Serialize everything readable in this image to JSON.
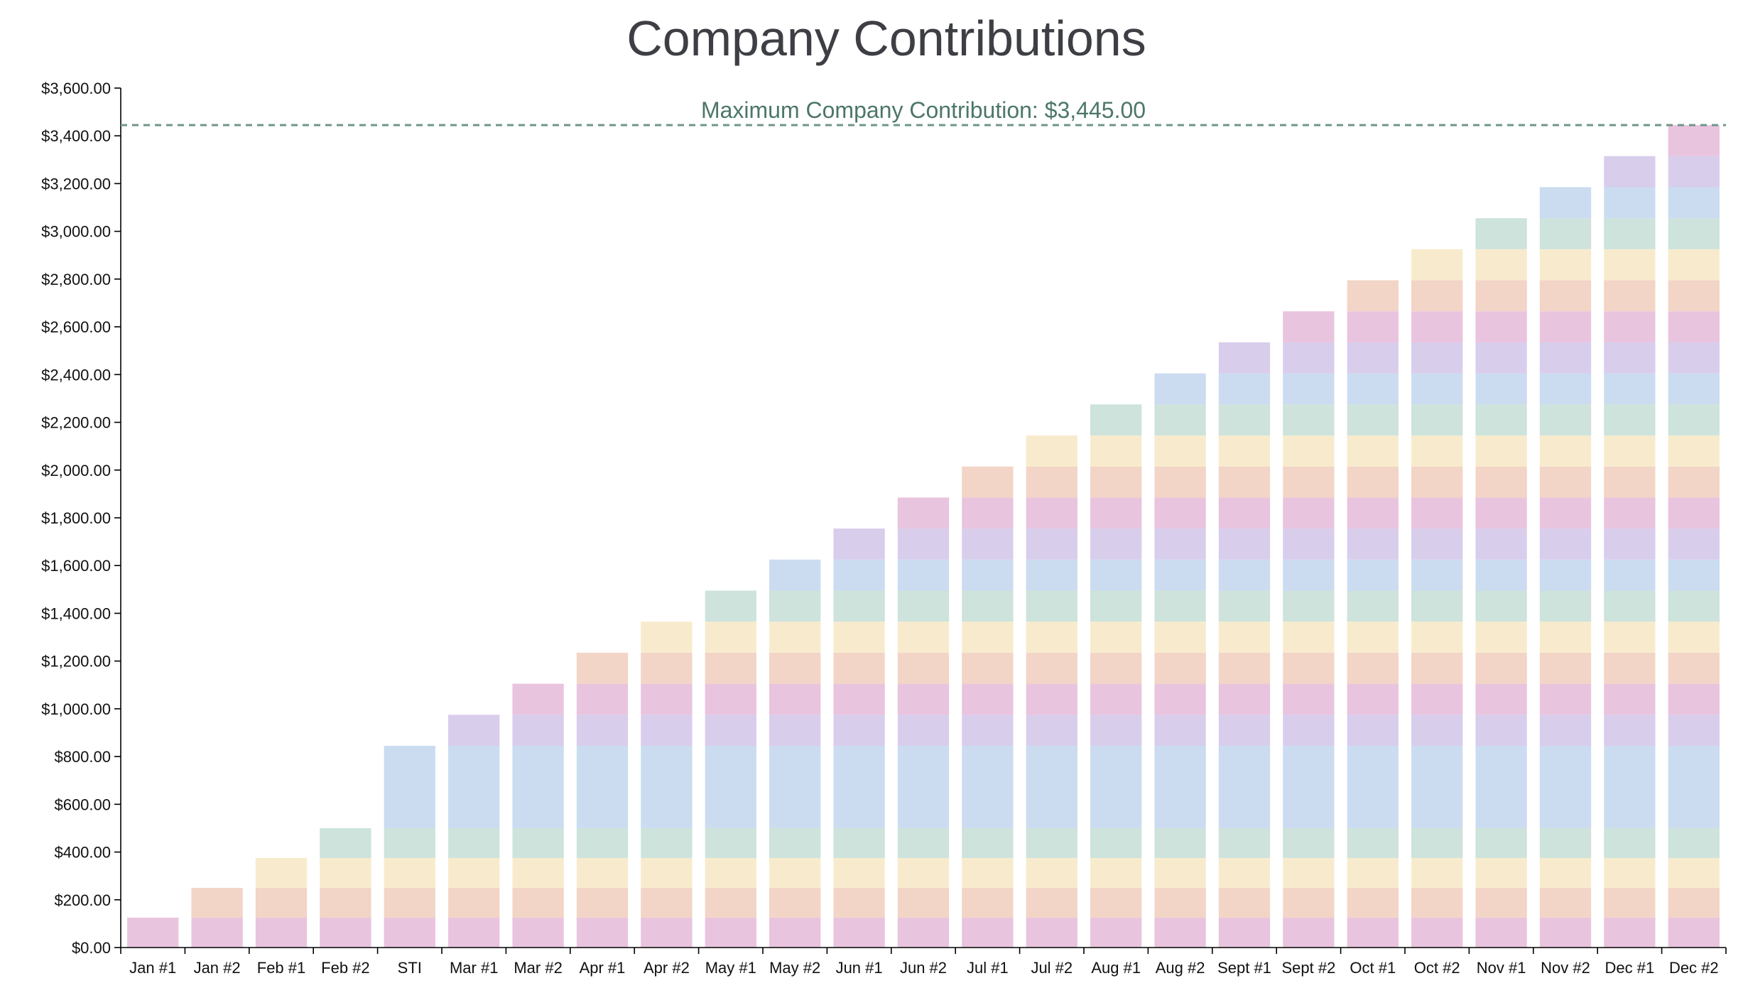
{
  "chart_data": {
    "type": "bar",
    "stacked": true,
    "title": "Company Contributions",
    "xlabel": "",
    "ylabel": "",
    "ylim": [
      0,
      3600
    ],
    "y_ticks": [
      "$0.00",
      "$200.00",
      "$400.00",
      "$600.00",
      "$800.00",
      "$1,000.00",
      "$1,200.00",
      "$1,400.00",
      "$1,600.00",
      "$1,800.00",
      "$2,000.00",
      "$2,200.00",
      "$2,400.00",
      "$2,600.00",
      "$2,800.00",
      "$3,000.00",
      "$3,200.00",
      "$3,400.00",
      "$3,600.00"
    ],
    "categories": [
      "Jan #1",
      "Jan #2",
      "Feb #1",
      "Feb #2",
      "STI",
      "Mar #1",
      "Mar #2",
      "Apr #1",
      "Apr #2",
      "May #1",
      "May #2",
      "Jun #1",
      "Jun #2",
      "Jul #1",
      "Jul #2",
      "Aug #1",
      "Aug #2",
      "Sept #1",
      "Sept #2",
      "Oct #1",
      "Oct #2",
      "Nov #1",
      "Nov #2",
      "Dec #1",
      "Dec #2"
    ],
    "segment_values": [
      125,
      125,
      125,
      125,
      345,
      130,
      130,
      130,
      130,
      130,
      130,
      130,
      130,
      130,
      130,
      130,
      130,
      130,
      130,
      130,
      130,
      130,
      130,
      130,
      130
    ],
    "totals": [
      125,
      250,
      375,
      500,
      845,
      975,
      1105,
      1235,
      1365,
      1495,
      1625,
      1755,
      1885,
      2015,
      2145,
      2275,
      2405,
      2535,
      2665,
      2795,
      2925,
      3055,
      3185,
      3315,
      3445
    ],
    "reference_line": {
      "value": 3445,
      "label": "Maximum Company Contribution: $3,445.00",
      "color": "#6f968a"
    },
    "segment_colors": [
      "#e9c4de",
      "#f2d5c7",
      "#f8ebcd",
      "#cde3dc",
      "#cbdcf0",
      "#d9cdec"
    ],
    "grid": false,
    "legend": "none"
  }
}
